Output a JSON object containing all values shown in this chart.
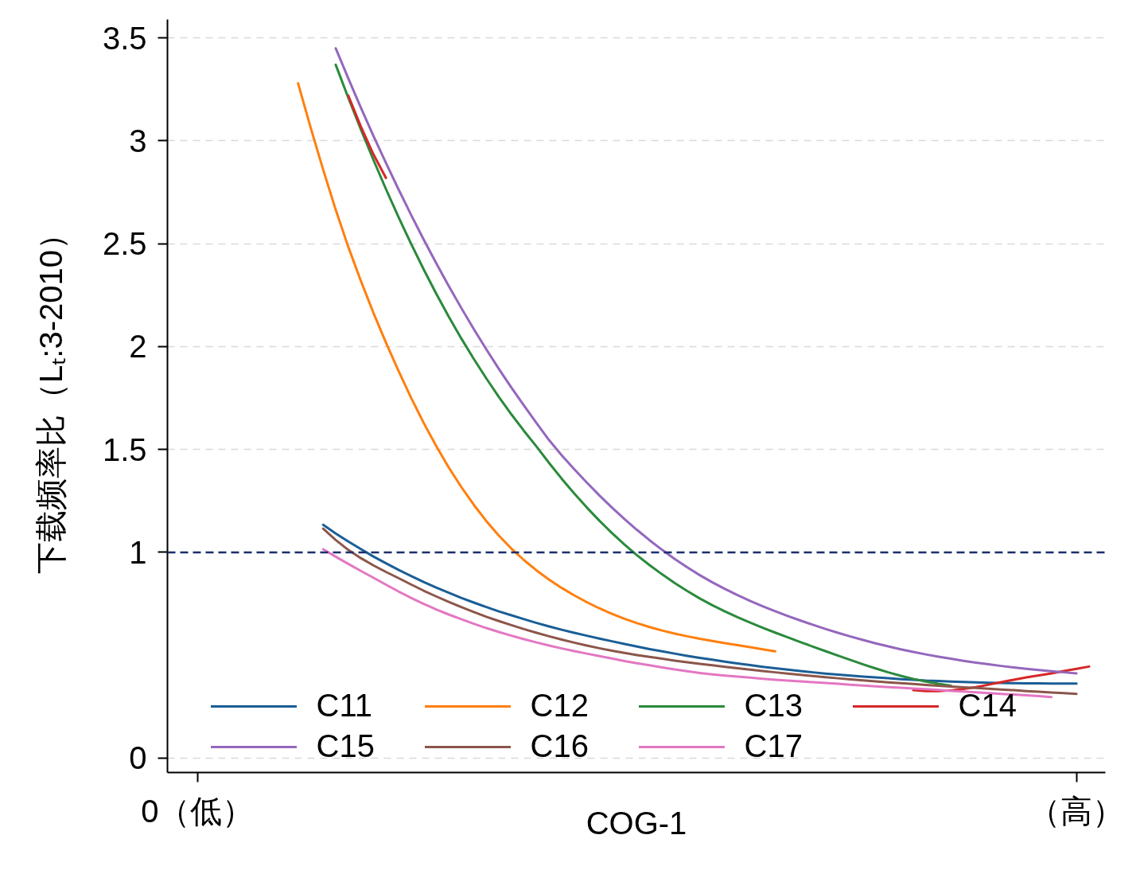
{
  "chart_data": {
    "type": "line",
    "xlabel": "COG-1",
    "ylabel": "下载频率比（Lₜ:3-2010）",
    "categories": [
      "0（低）",
      null,
      null,
      null,
      null,
      null,
      null,
      null,
      null,
      null,
      null,
      null,
      null,
      null,
      null,
      null,
      null,
      null,
      null,
      null,
      null,
      null,
      null,
      null,
      null,
      null,
      null,
      null,
      null,
      null,
      null,
      null,
      null,
      null,
      null,
      null,
      null,
      null,
      null,
      null,
      null,
      null,
      null,
      null,
      null,
      null,
      null,
      null,
      null,
      null,
      null,
      null,
      null,
      null,
      null,
      null,
      null,
      null,
      null,
      null,
      null,
      null,
      null,
      null,
      null,
      null,
      null,
      null,
      null,
      null,
      "（高）",
      null
    ],
    "ylim": [
      -0.07,
      3.59
    ],
    "yticks": [
      0,
      1,
      1.5,
      2,
      2.5,
      3,
      3.5
    ],
    "grid": "y",
    "legend": "bottom",
    "line_style": "solid",
    "ref_lines": [
      {
        "axis": "y",
        "value": 1,
        "color": "#1b2f6e",
        "line_style": "dashed"
      }
    ],
    "series": [
      {
        "name": "C11",
        "color": "#1a5e96",
        "values": [
          null,
          null,
          null,
          null,
          null,
          null,
          null,
          null,
          null,
          null,
          1.134,
          1.092,
          1.053,
          1.016,
          0.98,
          0.947,
          0.915,
          0.885,
          0.856,
          0.829,
          0.804,
          0.779,
          0.756,
          0.734,
          0.713,
          0.694,
          0.675,
          0.657,
          0.64,
          0.624,
          0.609,
          0.595,
          0.581,
          0.568,
          0.555,
          0.542,
          0.53,
          0.519,
          0.508,
          0.497,
          0.487,
          0.478,
          0.469,
          0.46,
          0.452,
          0.444,
          0.437,
          0.43,
          0.423,
          0.417,
          0.411,
          0.406,
          0.401,
          0.396,
          0.392,
          0.388,
          0.384,
          0.381,
          0.377,
          0.375,
          0.372,
          0.37,
          0.368,
          0.366,
          0.365,
          0.364,
          0.363,
          0.363,
          0.362,
          0.362,
          0.362,
          null
        ]
      },
      {
        "name": "C12",
        "color": "#ff7f0e",
        "values": [
          null,
          null,
          null,
          null,
          null,
          null,
          null,
          null,
          3.28,
          3.065,
          2.86,
          2.665,
          2.485,
          2.32,
          2.165,
          2.02,
          1.882,
          1.752,
          1.63,
          1.517,
          1.413,
          1.318,
          1.231,
          1.152,
          1.081,
          1.018,
          0.962,
          0.912,
          0.867,
          0.827,
          0.791,
          0.758,
          0.728,
          0.701,
          0.677,
          0.656,
          0.637,
          0.62,
          0.605,
          0.592,
          0.58,
          0.569,
          0.559,
          0.549,
          0.539,
          0.529,
          0.519,
          null,
          null,
          null,
          null,
          null,
          null,
          null,
          null,
          null,
          null,
          null,
          null,
          null,
          null,
          null,
          null,
          null,
          null,
          null,
          null,
          null,
          null,
          null,
          null,
          null
        ]
      },
      {
        "name": "C13",
        "color": "#2a8a3c",
        "values": [
          null,
          null,
          null,
          null,
          null,
          null,
          null,
          null,
          null,
          null,
          null,
          3.37,
          3.21,
          3.056,
          2.908,
          2.766,
          2.63,
          2.5,
          2.376,
          2.258,
          2.146,
          2.04,
          1.94,
          1.845,
          1.755,
          1.67,
          1.59,
          1.514,
          1.434,
          1.358,
          1.286,
          1.218,
          1.154,
          1.094,
          1.038,
          0.986,
          0.938,
          0.893,
          0.851,
          0.812,
          0.776,
          0.743,
          0.713,
          0.685,
          0.659,
          0.634,
          0.61,
          0.587,
          0.564,
          0.542,
          0.52,
          0.498,
          0.477,
          0.456,
          0.436,
          0.417,
          0.4,
          0.385,
          0.372,
          0.361,
          0.352,
          null,
          null,
          null,
          null,
          null,
          null,
          null,
          null,
          null,
          null,
          null
        ]
      },
      {
        "name": "C14",
        "color": "#d62728",
        "values": [
          null,
          null,
          null,
          null,
          null,
          null,
          null,
          null,
          null,
          null,
          null,
          null,
          3.22,
          3.07,
          2.935,
          2.82,
          null,
          null,
          null,
          null,
          null,
          null,
          null,
          null,
          null,
          null,
          null,
          null,
          null,
          null,
          null,
          null,
          null,
          null,
          null,
          null,
          null,
          null,
          null,
          null,
          null,
          null,
          null,
          null,
          null,
          null,
          null,
          null,
          null,
          null,
          null,
          null,
          null,
          null,
          null,
          null,
          null,
          0.33,
          0.326,
          0.326,
          0.329,
          0.336,
          0.345,
          0.357,
          0.369,
          0.381,
          0.392,
          0.402,
          0.412,
          0.423,
          0.434,
          0.445
        ]
      },
      {
        "name": "C15",
        "color": "#9467bd",
        "values": [
          null,
          null,
          null,
          null,
          null,
          null,
          null,
          null,
          null,
          null,
          null,
          3.45,
          3.304,
          3.162,
          3.025,
          2.893,
          2.765,
          2.641,
          2.521,
          2.406,
          2.295,
          2.188,
          2.085,
          1.986,
          1.891,
          1.8,
          1.713,
          1.628,
          1.545,
          1.472,
          1.404,
          1.339,
          1.277,
          1.218,
          1.162,
          1.109,
          1.059,
          1.012,
          0.968,
          0.927,
          0.889,
          0.854,
          0.822,
          0.792,
          0.764,
          0.738,
          0.714,
          0.691,
          0.669,
          0.648,
          0.628,
          0.609,
          0.591,
          0.574,
          0.558,
          0.543,
          0.529,
          0.516,
          0.504,
          0.493,
          0.483,
          0.473,
          0.464,
          0.456,
          0.448,
          0.441,
          0.434,
          0.428,
          0.422,
          0.417,
          0.412,
          null
        ]
      },
      {
        "name": "C16",
        "color": "#8c564b",
        "values": [
          null,
          null,
          null,
          null,
          null,
          null,
          null,
          null,
          null,
          null,
          1.115,
          1.06,
          1.012,
          0.972,
          0.937,
          0.905,
          0.875,
          0.844,
          0.814,
          0.786,
          0.759,
          0.734,
          0.71,
          0.687,
          0.666,
          0.646,
          0.627,
          0.609,
          0.592,
          0.576,
          0.561,
          0.547,
          0.534,
          0.522,
          0.511,
          0.501,
          0.492,
          0.483,
          0.474,
          0.466,
          0.458,
          0.451,
          0.444,
          0.437,
          0.43,
          0.423,
          0.417,
          0.411,
          0.405,
          0.399,
          0.393,
          0.388,
          0.383,
          0.378,
          0.373,
          0.368,
          0.364,
          0.36,
          0.356,
          0.352,
          0.348,
          0.344,
          0.341,
          0.337,
          0.333,
          0.33,
          0.326,
          0.323,
          0.319,
          0.316,
          0.312,
          null
        ]
      },
      {
        "name": "C17",
        "color": "#e377c2",
        "values": [
          null,
          null,
          null,
          null,
          null,
          null,
          null,
          null,
          null,
          null,
          1.015,
          0.979,
          0.944,
          0.91,
          0.877,
          0.843,
          0.81,
          0.779,
          0.75,
          0.723,
          0.698,
          0.675,
          0.653,
          0.632,
          0.613,
          0.595,
          0.578,
          0.562,
          0.547,
          0.533,
          0.52,
          0.508,
          0.496,
          0.484,
          0.472,
          0.461,
          0.451,
          0.441,
          0.431,
          0.422,
          0.414,
          0.407,
          0.401,
          0.396,
          0.391,
          0.386,
          0.381,
          0.377,
          0.373,
          0.369,
          0.365,
          0.361,
          0.357,
          0.353,
          0.349,
          0.345,
          0.342,
          0.338,
          0.335,
          0.331,
          0.327,
          0.324,
          0.32,
          0.316,
          0.312,
          0.309,
          0.305,
          0.301,
          0.297,
          null,
          null,
          null
        ]
      }
    ]
  }
}
